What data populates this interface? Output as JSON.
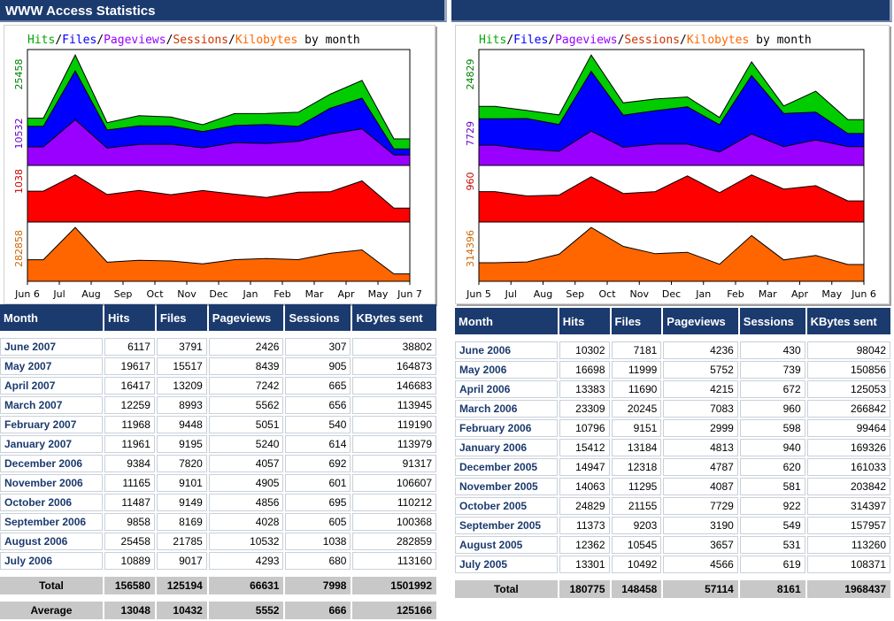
{
  "left": {
    "title": "WWW Access Statistics",
    "chart_data": {
      "type": "area",
      "legend_labels": [
        "Hits",
        "Files",
        "Pageviews",
        "Sessions",
        "Kilobytes"
      ],
      "legend_suffix": " by month",
      "x": [
        "Jun 6",
        "Jul",
        "Aug",
        "Sep",
        "Oct",
        "Nov",
        "Dec",
        "Jan",
        "Feb",
        "Mar",
        "Apr",
        "May",
        "Jun 7"
      ],
      "panels": [
        {
          "label": "25458",
          "color": "#008000",
          "series": [
            {
              "name": "Hits",
              "color": "#00cc00",
              "values": [
                10889,
                25458,
                9858,
                11487,
                11165,
                9384,
                11961,
                11968,
                12259,
                16417,
                19617,
                6117
              ]
            },
            {
              "name": "Files",
              "color": "#0000ff",
              "values": [
                9017,
                21785,
                8169,
                9149,
                9101,
                7820,
                9195,
                9448,
                8993,
                13209,
                15517,
                3791
              ]
            },
            {
              "name": "Pageviews",
              "color": "#9900ff",
              "values": [
                4293,
                10532,
                4028,
                4856,
                4905,
                4057,
                5240,
                5051,
                5562,
                7242,
                8439,
                2426
              ]
            }
          ]
        },
        {
          "label": "10532",
          "color": "#6600cc"
        },
        {
          "label": "1038",
          "color": "#cc0000",
          "series": [
            {
              "name": "Sessions",
              "color": "#ff0000",
              "values": [
                680,
                1038,
                605,
                695,
                601,
                692,
                614,
                540,
                656,
                665,
                905,
                307
              ]
            }
          ]
        },
        {
          "label": "282858",
          "color": "#cc6600",
          "series": [
            {
              "name": "Kilobytes",
              "color": "#ff6600",
              "values": [
                113160,
                282859,
                100368,
                110212,
                106607,
                91317,
                113979,
                119190,
                113945,
                146683,
                164873,
                38802
              ]
            }
          ]
        }
      ]
    },
    "table": {
      "headers": [
        "Month",
        "Hits",
        "Files",
        "Pageviews",
        "Sessions",
        "KBytes sent"
      ],
      "rows": [
        [
          "June 2007",
          "6117",
          "3791",
          "2426",
          "307",
          "38802"
        ],
        [
          "May 2007",
          "19617",
          "15517",
          "8439",
          "905",
          "164873"
        ],
        [
          "April 2007",
          "16417",
          "13209",
          "7242",
          "665",
          "146683"
        ],
        [
          "March 2007",
          "12259",
          "8993",
          "5562",
          "656",
          "113945"
        ],
        [
          "February 2007",
          "11968",
          "9448",
          "5051",
          "540",
          "119190"
        ],
        [
          "January 2007",
          "11961",
          "9195",
          "5240",
          "614",
          "113979"
        ],
        [
          "December 2006",
          "9384",
          "7820",
          "4057",
          "692",
          "91317"
        ],
        [
          "November 2006",
          "11165",
          "9101",
          "4905",
          "601",
          "106607"
        ],
        [
          "October 2006",
          "11487",
          "9149",
          "4856",
          "695",
          "110212"
        ],
        [
          "September 2006",
          "9858",
          "8169",
          "4028",
          "605",
          "100368"
        ],
        [
          "August 2006",
          "25458",
          "21785",
          "10532",
          "1038",
          "282859"
        ],
        [
          "July 2006",
          "10889",
          "9017",
          "4293",
          "680",
          "113160"
        ]
      ],
      "total": [
        "Total",
        "156580",
        "125194",
        "66631",
        "7998",
        "1501992"
      ],
      "average": [
        "Average",
        "13048",
        "10432",
        "5552",
        "666",
        "125166"
      ]
    }
  },
  "right": {
    "title": "",
    "chart_data": {
      "type": "area",
      "legend_labels": [
        "Hits",
        "Files",
        "Pageviews",
        "Sessions",
        "Kilobytes"
      ],
      "legend_suffix": " by month",
      "x": [
        "Jun 5",
        "Jul",
        "Aug",
        "Sep",
        "Oct",
        "Nov",
        "Dec",
        "Jan",
        "Feb",
        "Mar",
        "Apr",
        "May",
        "Jun 6"
      ],
      "panels": [
        {
          "label": "24829",
          "color": "#008000",
          "series": [
            {
              "name": "Hits",
              "color": "#00cc00",
              "values": [
                13301,
                12362,
                11373,
                24829,
                14063,
                14947,
                15412,
                10796,
                23309,
                13383,
                16698,
                10302
              ]
            },
            {
              "name": "Files",
              "color": "#0000ff",
              "values": [
                10492,
                10545,
                9203,
                21155,
                11295,
                12318,
                13184,
                9151,
                20245,
                11690,
                11999,
                7181
              ]
            },
            {
              "name": "Pageviews",
              "color": "#9900ff",
              "values": [
                4566,
                3657,
                3190,
                7729,
                4087,
                4787,
                4813,
                2999,
                7083,
                4215,
                5752,
                4236
              ]
            }
          ]
        },
        {
          "label": "7729",
          "color": "#6600cc"
        },
        {
          "label": "960",
          "color": "#cc0000",
          "series": [
            {
              "name": "Sessions",
              "color": "#ff0000",
              "values": [
                619,
                531,
                549,
                922,
                581,
                620,
                940,
                598,
                960,
                672,
                739,
                430
              ]
            }
          ]
        },
        {
          "label": "314396",
          "color": "#cc6600",
          "series": [
            {
              "name": "Kilobytes",
              "color": "#ff6600",
              "values": [
                108371,
                113260,
                157957,
                314397,
                203842,
                161033,
                169326,
                99464,
                266842,
                125053,
                150856,
                98042
              ]
            }
          ]
        }
      ]
    },
    "table": {
      "headers": [
        "Month",
        "Hits",
        "Files",
        "Pageviews",
        "Sessions",
        "KBytes sent"
      ],
      "rows": [
        [
          "June 2006",
          "10302",
          "7181",
          "4236",
          "430",
          "98042"
        ],
        [
          "May 2006",
          "16698",
          "11999",
          "5752",
          "739",
          "150856"
        ],
        [
          "April 2006",
          "13383",
          "11690",
          "4215",
          "672",
          "125053"
        ],
        [
          "March 2006",
          "23309",
          "20245",
          "7083",
          "960",
          "266842"
        ],
        [
          "February 2006",
          "10796",
          "9151",
          "2999",
          "598",
          "99464"
        ],
        [
          "January 2006",
          "15412",
          "13184",
          "4813",
          "940",
          "169326"
        ],
        [
          "December 2005",
          "14947",
          "12318",
          "4787",
          "620",
          "161033"
        ],
        [
          "November 2005",
          "14063",
          "11295",
          "4087",
          "581",
          "203842"
        ],
        [
          "October 2005",
          "24829",
          "21155",
          "7729",
          "922",
          "314397"
        ],
        [
          "September 2005",
          "11373",
          "9203",
          "3190",
          "549",
          "157957"
        ],
        [
          "August 2005",
          "12362",
          "10545",
          "3657",
          "531",
          "113260"
        ],
        [
          "July 2005",
          "13301",
          "10492",
          "4566",
          "619",
          "108371"
        ]
      ],
      "total": [
        "Total",
        "180775",
        "148458",
        "57114",
        "8161",
        "1968437"
      ]
    }
  }
}
